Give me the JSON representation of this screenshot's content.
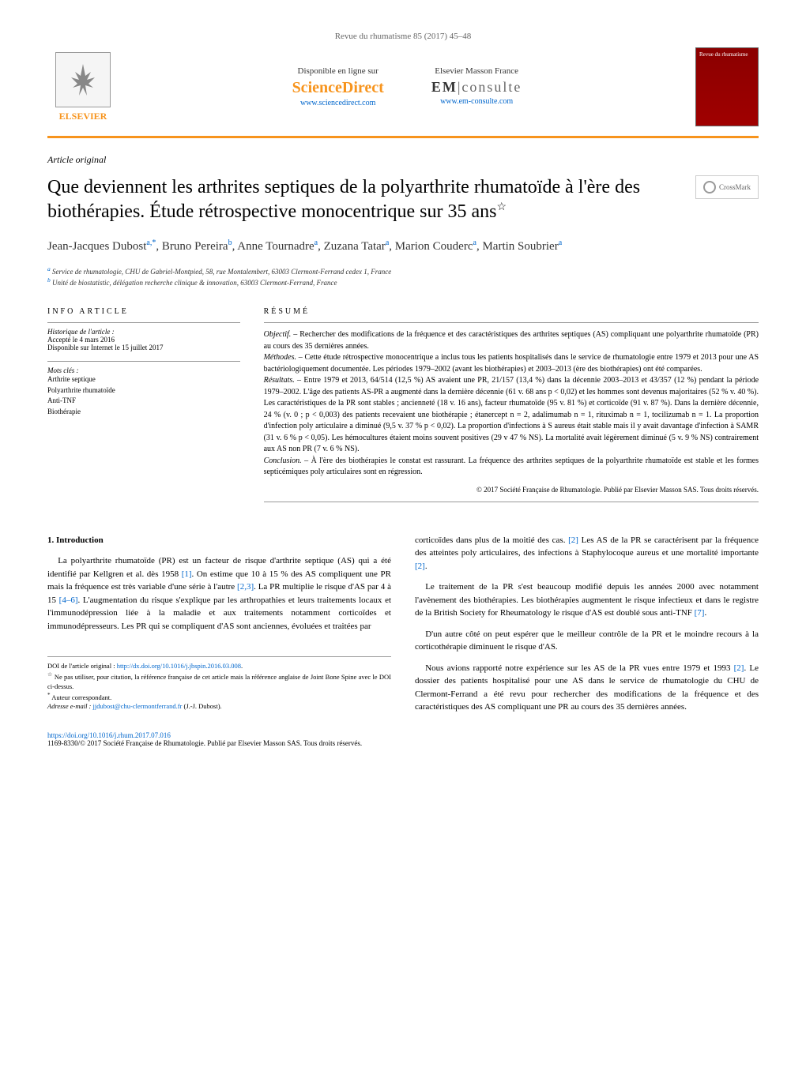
{
  "journal_header": "Revue du rhumatisme 85 (2017) 45–48",
  "header": {
    "elsevier_label": "ELSEVIER",
    "sd_label": "Disponible en ligne sur",
    "sd_logo": "ScienceDirect",
    "sd_url": "www.sciencedirect.com",
    "em_label": "Elsevier Masson France",
    "em_logo_em": "EM",
    "em_logo_rest": "consulte",
    "em_url": "www.em-consulte.com",
    "cover_title": "Revue du rhumatisme"
  },
  "article_type": "Article original",
  "title": "Que deviennent les arthrites septiques de la polyarthrite rhumatoïde à l'ère des biothérapies. Étude rétrospective monocentrique sur 35 ans",
  "title_note": "☆",
  "crossmark": "CrossMark",
  "authors": [
    {
      "name": "Jean-Jacques Dubost",
      "aff": "a,*"
    },
    {
      "name": "Bruno Pereira",
      "aff": "b"
    },
    {
      "name": "Anne Tournadre",
      "aff": "a"
    },
    {
      "name": "Zuzana Tatar",
      "aff": "a"
    },
    {
      "name": "Marion Couderc",
      "aff": "a"
    },
    {
      "name": "Martin Soubrier",
      "aff": "a"
    }
  ],
  "affiliations": [
    {
      "marker": "a",
      "text": "Service de rhumatologie, CHU de Gabriel-Montpied, 58, rue Montalembert, 63003 Clermont-Ferrand cedex 1, France"
    },
    {
      "marker": "b",
      "text": "Unité de biostatistic, délégation recherche clinique & innovation, 63003 Clermont-Ferrand, France"
    }
  ],
  "info": {
    "heading": "info article",
    "history_label": "Historique de l'article :",
    "accepted": "Accepté le 4 mars 2016",
    "online": "Disponible sur Internet le 15 juillet 2017",
    "keywords_label": "Mots clés :",
    "keywords": [
      "Arthrite septique",
      "Polyarthrite rhumatoïde",
      "Anti-TNF",
      "Biothérapie"
    ]
  },
  "abstract": {
    "heading": "résumé",
    "objectif_label": "Objectif. –",
    "objectif": "Rechercher des modifications de la fréquence et des caractéristiques des arthrites septiques (AS) compliquant une polyarthrite rhumatoïde (PR) au cours des 35 dernières années.",
    "methodes_label": "Méthodes. –",
    "methodes": "Cette étude rétrospective monocentrique a inclus tous les patients hospitalisés dans le service de rhumatologie entre 1979 et 2013 pour une AS bactériologiquement documentée. Les périodes 1979–2002 (avant les biothérapies) et 2003–2013 (ère des biothérapies) ont été comparées.",
    "resultats_label": "Résultats. –",
    "resultats": "Entre 1979 et 2013, 64/514 (12,5 %) AS avaient une PR, 21/157 (13,4 %) dans la décennie 2003–2013 et 43/357 (12 %) pendant la période 1979–2002. L'âge des patients AS-PR a augmenté dans la dernière décennie (61 v. 68 ans p < 0,02) et les hommes sont devenus majoritaires (52 % v. 40 %). Les caractéristiques de la PR sont stables ; ancienneté (18 v. 16 ans), facteur rhumatoïde (95 v. 81 %) et corticoïde (91 v. 87 %). Dans la dernière décennie, 24 % (v. 0 ; p < 0,003) des patients recevaient une biothérapie ; étanercept n = 2, adalimumab n = 1, rituximab n = 1, tocilizumab n = 1. La proportion d'infection poly articulaire a diminué (9,5 v. 37 % p < 0,02). La proportion d'infections à S aureus était stable mais il y avait davantage d'infection à SAMR (31 v. 6 % p < 0,05). Les hémocultures étaient moins souvent positives (29 v 47 % NS). La mortalité avait légèrement diminué (5 v. 9 % NS) contrairement aux AS non PR (7 v. 6 % NS).",
    "conclusion_label": "Conclusion. –",
    "conclusion": "À l'ère des biothérapies le constat est rassurant. La fréquence des arthrites septiques de la polyarthrite rhumatoïde est stable et les formes septicémiques poly articulaires sont en régression.",
    "copyright": "© 2017 Société Française de Rhumatologie. Publié par Elsevier Masson SAS. Tous droits réservés."
  },
  "body": {
    "intro_heading": "1. Introduction",
    "col1_p1a": "La polyarthrite rhumatoïde (PR) est un facteur de risque d'arthrite septique (AS) qui a été identifié par Kellgren et al. dès 1958 ",
    "col1_ref1": "[1]",
    "col1_p1b": ". On estime que 10 à 15 % des AS compliquent une PR mais la fréquence est très variable d'une série à l'autre ",
    "col1_ref2": "[2,3]",
    "col1_p1c": ". La PR multiplie le risque d'AS par 4 à 15 ",
    "col1_ref3": "[4–6]",
    "col1_p1d": ". L'augmentation du risque s'explique par les arthropathies et leurs traitements locaux et l'immunodépression liée à la maladie et aux traitements notamment corticoïdes et immunodépresseurs. Les PR qui se compliquent d'AS sont anciennes, évoluées et traitées par",
    "col2_p1a": "corticoïdes dans plus de la moitié des cas. ",
    "col2_ref1": "[2]",
    "col2_p1b": " Les AS de la PR se caractérisent par la fréquence des atteintes poly articulaires, des infections à Staphylocoque aureus et une mortalité importante ",
    "col2_ref2": "[2]",
    "col2_p1c": ".",
    "col2_p2a": "Le traitement de la PR s'est beaucoup modifié depuis les années 2000 avec notamment l'avènement des biothérapies. Les biothérapies augmentent le risque infectieux et dans le registre de la British Society for Rheumatology le risque d'AS est doublé sous anti-TNF ",
    "col2_ref3": "[7]",
    "col2_p2b": ".",
    "col2_p3": "D'un autre côté on peut espérer que le meilleur contrôle de la PR et le moindre recours à la corticothérapie diminuent le risque d'AS.",
    "col2_p4a": "Nous avions rapporté notre expérience sur les AS de la PR vues entre 1979 et 1993 ",
    "col2_ref4": "[2]",
    "col2_p4b": ". Le dossier des patients hospitalisé pour une AS dans le service de rhumatologie du CHU de Clermont-Ferrand a été revu pour rechercher des modifications de la fréquence et des caractéristiques des AS compliquant une PR au cours des 35 dernières années."
  },
  "footnotes": {
    "doi_label": "DOI de l'article original :",
    "doi_url": "http://dx.doi.org/10.1016/j.jbspin.2016.03.008",
    "star": "☆",
    "star_text": "Ne pas utiliser, pour citation, la référence française de cet article mais la référence anglaise de Joint Bone Spine avec le DOI ci-dessus.",
    "corresp_marker": "*",
    "corresp": "Auteur correspondant.",
    "email_label": "Adresse e-mail :",
    "email": "jjdubost@chu-clermontferrand.fr",
    "email_name": "(J.-J. Dubost)."
  },
  "footer": {
    "doi": "https://doi.org/10.1016/j.rhum.2017.07.016",
    "issn": "1169-8330/© 2017 Société Française de Rhumatologie. Publié par Elsevier Masson SAS. Tous droits réservés."
  }
}
